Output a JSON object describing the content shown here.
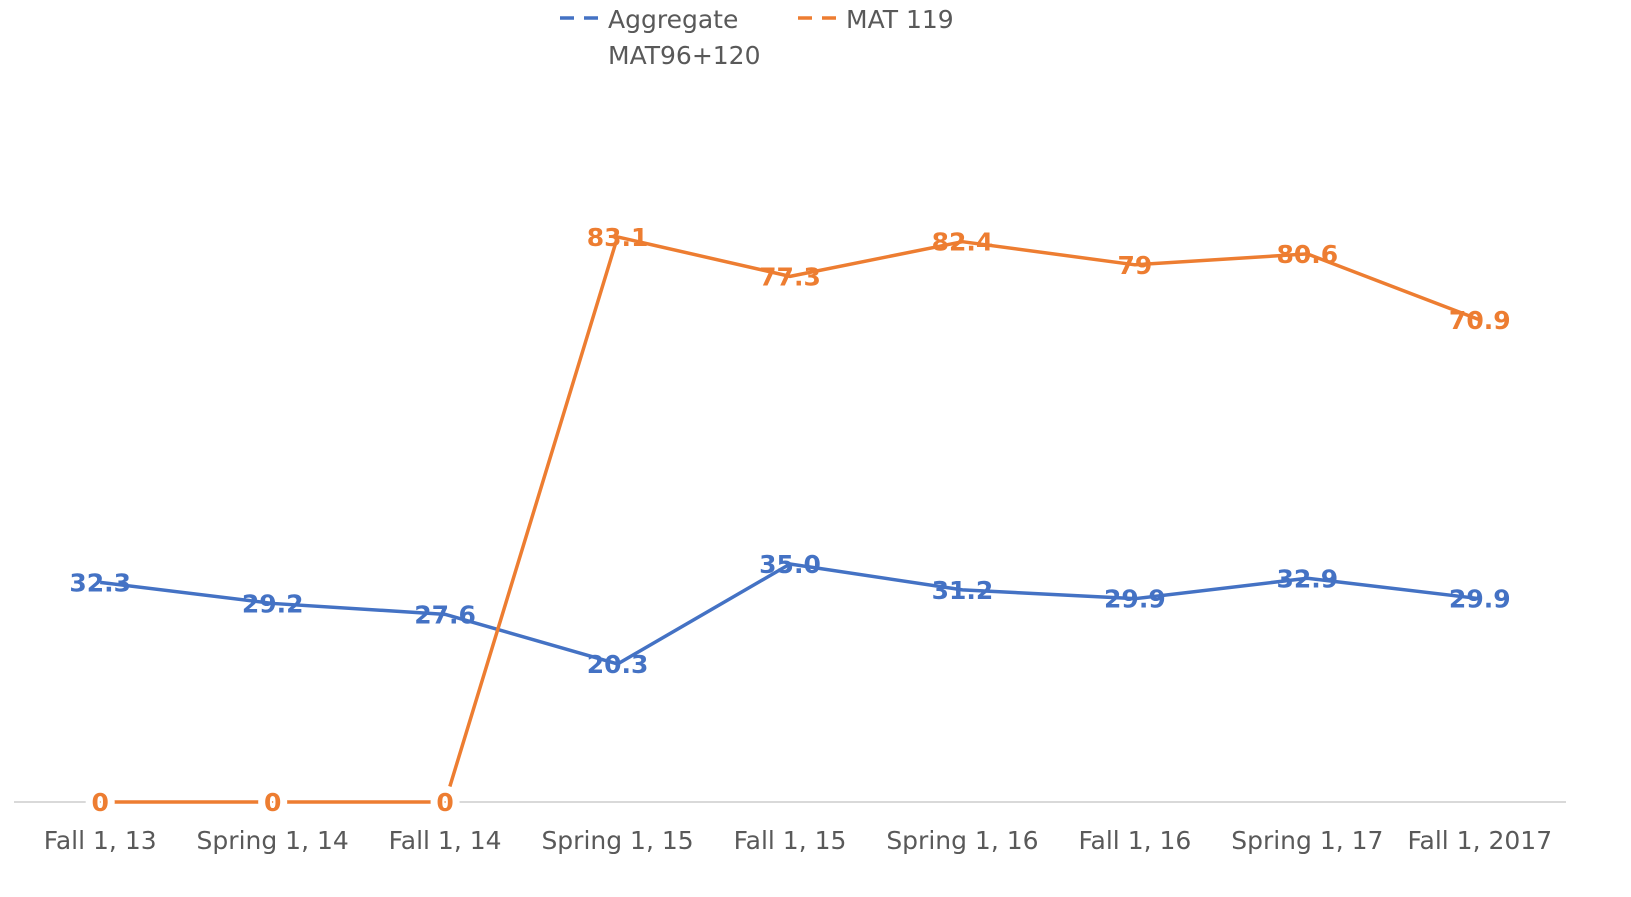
{
  "chart_data": {
    "type": "line",
    "categories": [
      "Fall 1, 13",
      "Spring 1, 14",
      "Fall 1, 14",
      "Spring 1, 15",
      "Fall 1, 15",
      "Spring 1, 16",
      "Fall 1, 16",
      "Spring 1, 17",
      "Fall 1, 2017"
    ],
    "series": [
      {
        "name": "Aggregate MAT96+120",
        "color": "#4472c4",
        "values": [
          32.3,
          29.2,
          27.6,
          20.3,
          35.0,
          31.2,
          29.9,
          32.9,
          29.9
        ],
        "value_labels": [
          "32.3",
          "29.2",
          "27.6",
          "20.3",
          "35.0",
          "31.2",
          "29.9",
          "32.9",
          "29.9"
        ]
      },
      {
        "name": "MAT 119",
        "color": "#ed7d31",
        "values": [
          0,
          0,
          0,
          83.1,
          77.3,
          82.4,
          79,
          80.6,
          70.9
        ]
      }
    ],
    "ylim": [
      0,
      90
    ],
    "legend": "top"
  }
}
